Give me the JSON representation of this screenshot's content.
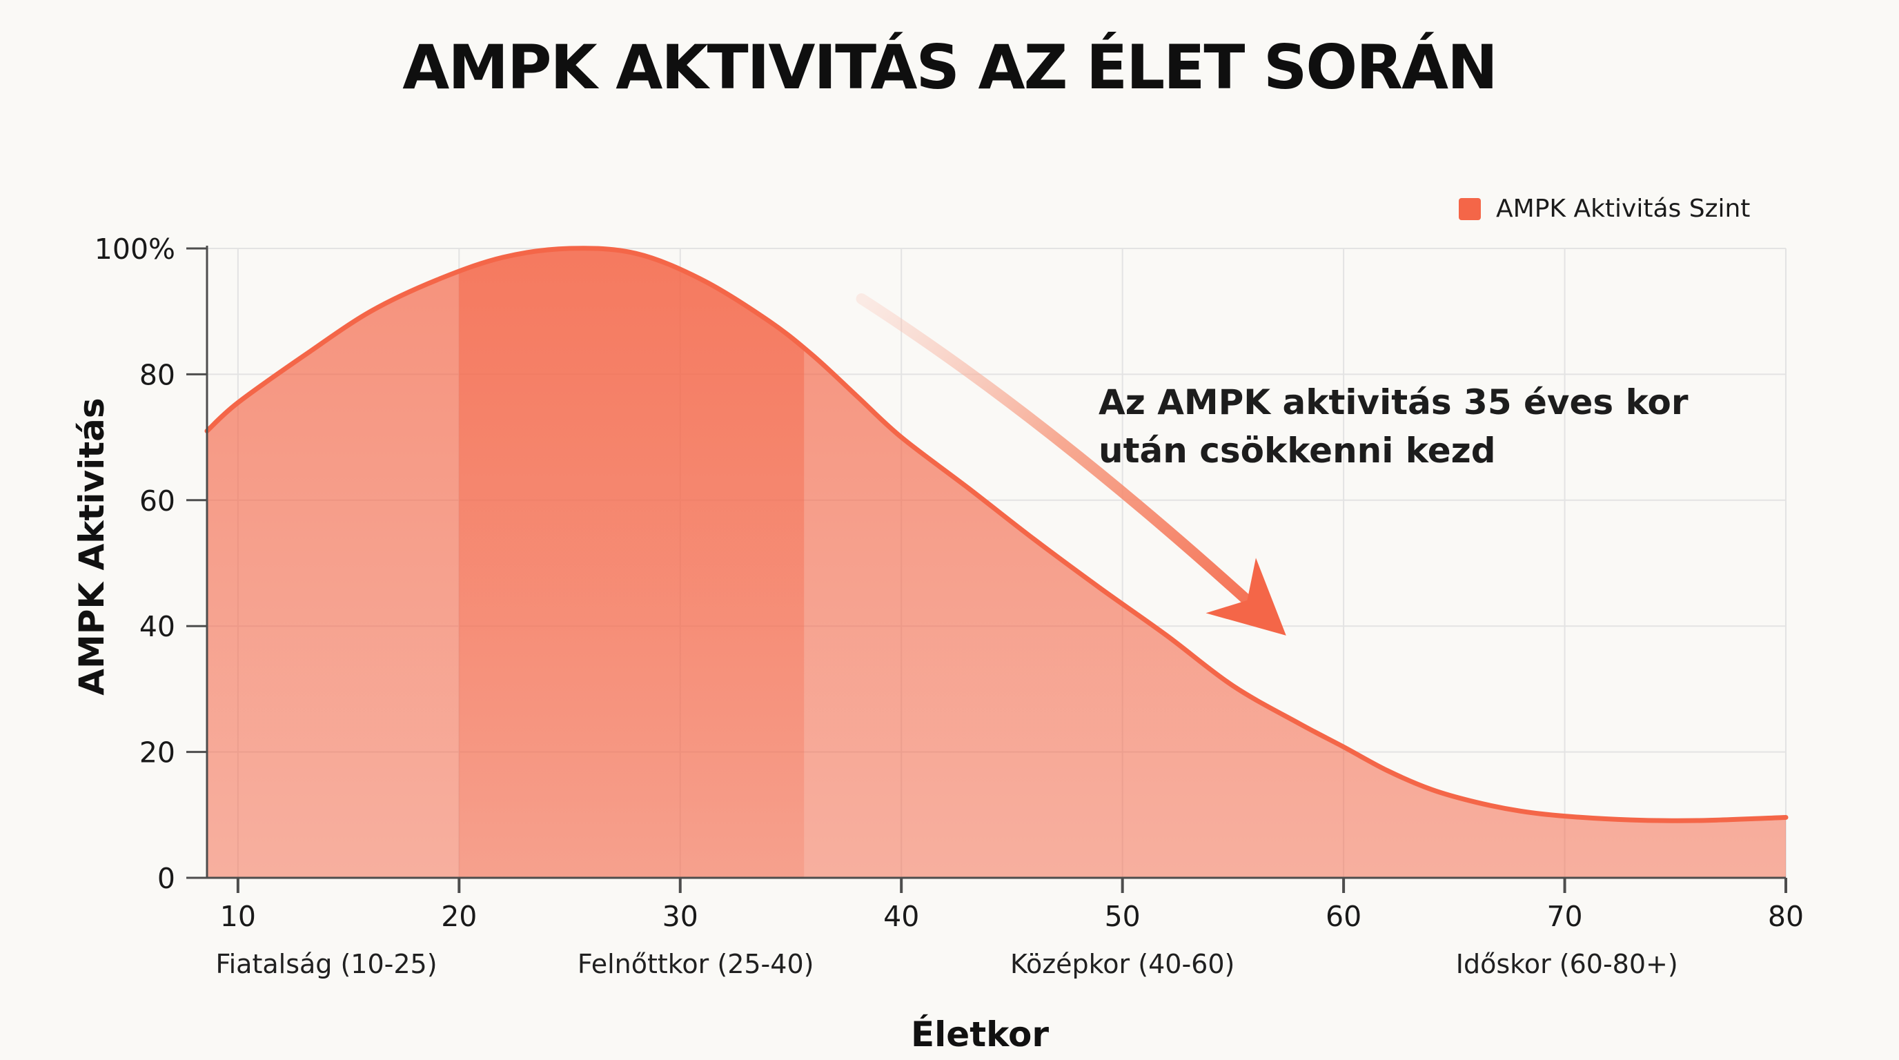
{
  "title": "AMPK AKTIVITÁS AZ ÉLET SORÁN",
  "legend": {
    "label": "AMPK Aktivitás Szint"
  },
  "annotation": {
    "line1": "Az AMPK aktivitás 35 éves kor",
    "line2": "után csökkenni kezd"
  },
  "colors": {
    "accent": "#f46648",
    "fill_top": "rgba(244,102,72,0.70)",
    "fill_bottom": "rgba(244,102,72,0.50)",
    "band_top": "rgba(244,102,72,0.55)",
    "band_bottom": "rgba(244,102,72,0.20)",
    "arrow_start": "rgba(249,200,188,0.30)",
    "arrow_mid": "rgba(246,150,122,0.80)",
    "grid": "#e3e3e3",
    "axis": "#4d4d4d",
    "background": "#faf9f6",
    "text": "#1a1a1a"
  },
  "chart_data": {
    "type": "area",
    "title": "AMPK AKTIVITÁS AZ ÉLET SORÁN",
    "xlabel": "Életkor",
    "ylabel": "AMPK Aktivitás",
    "xlim": [
      8.6,
      80
    ],
    "ylim": [
      0,
      100
    ],
    "grid": true,
    "legend_position": "top-right",
    "x_ticks": [
      10,
      20,
      30,
      40,
      50,
      60,
      70,
      80
    ],
    "y_ticks": [
      {
        "value": 0,
        "label": "0"
      },
      {
        "value": 20,
        "label": "20"
      },
      {
        "value": 40,
        "label": "40"
      },
      {
        "value": 60,
        "label": "60"
      },
      {
        "value": 80,
        "label": "80"
      },
      {
        "value": 100,
        "label": "100%"
      }
    ],
    "series": [
      {
        "name": "AMPK Aktivitás Szint",
        "type": "area",
        "color": "#f46648",
        "points": [
          [
            8.6,
            71
          ],
          [
            10,
            75.5
          ],
          [
            13,
            83
          ],
          [
            16,
            90
          ],
          [
            19,
            95
          ],
          [
            22,
            98.6
          ],
          [
            25,
            100
          ],
          [
            28,
            99.2
          ],
          [
            31,
            95
          ],
          [
            34,
            88.5
          ],
          [
            36,
            83
          ],
          [
            38,
            76.5
          ],
          [
            40,
            70
          ],
          [
            43,
            62
          ],
          [
            46,
            53.8
          ],
          [
            49,
            46
          ],
          [
            52,
            38.5
          ],
          [
            55,
            30.5
          ],
          [
            58,
            24.5
          ],
          [
            60,
            20.8
          ],
          [
            62,
            17
          ],
          [
            64,
            14
          ],
          [
            66,
            12
          ],
          [
            68,
            10.6
          ],
          [
            70,
            9.8
          ],
          [
            73,
            9.2
          ],
          [
            76,
            9.1
          ],
          [
            80,
            9.6
          ]
        ]
      }
    ],
    "highlight_band": {
      "x_start": 20,
      "x_end": 35.6
    },
    "life_stages": [
      {
        "label": "Fiatalság (10-25)",
        "center_x": 14
      },
      {
        "label": "Felnőttkor (25-40)",
        "center_x": 30.7
      },
      {
        "label": "Középkor (40-60)",
        "center_x": 50
      },
      {
        "label": "Időskor (60-80+)",
        "center_x": 70.1
      }
    ],
    "trend_arrow": {
      "x1": 38.2,
      "y1": 92,
      "cx": 46.4,
      "cy": 73.5,
      "x2": 57.4,
      "y2": 38.5
    },
    "annotation": "Az AMPK aktivitás 35 éves kor után csökkenni kezd"
  }
}
